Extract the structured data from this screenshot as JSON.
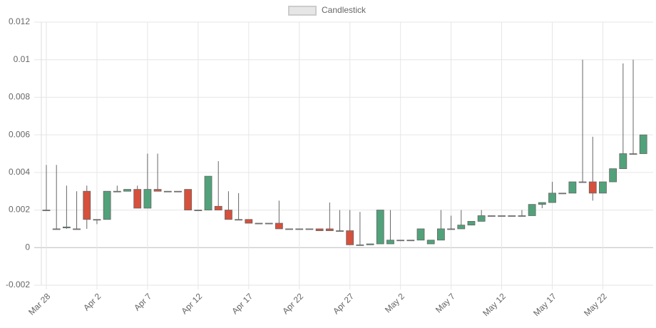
{
  "chart_data": {
    "type": "candlestick",
    "legend": "Candlestick",
    "categories": [
      "Mar 28",
      null,
      null,
      null,
      null,
      "Apr 2",
      null,
      null,
      null,
      null,
      "Apr 7",
      null,
      null,
      null,
      null,
      "Apr 12",
      null,
      null,
      null,
      null,
      "Apr 17",
      null,
      null,
      null,
      null,
      "Apr 22",
      null,
      null,
      null,
      null,
      "Apr 27",
      null,
      null,
      null,
      null,
      "May 2",
      null,
      null,
      null,
      null,
      "May 7",
      null,
      null,
      null,
      null,
      "May 12",
      null,
      null,
      null,
      null,
      "May 17",
      null,
      null,
      null,
      null,
      "May 22",
      null,
      null,
      null,
      null
    ],
    "open": [
      0.002,
      0.001,
      0.00105,
      0.001,
      0.003,
      0.0015,
      0.0015,
      0.003,
      0.003,
      0.0031,
      0.0021,
      0.0031,
      0.003,
      0.003,
      0.0031,
      0.002,
      0.002,
      0.0022,
      0.002,
      0.0015,
      0.0015,
      0.0013,
      0.0013,
      0.0013,
      0.001,
      0.001,
      0.001,
      0.001,
      0.001,
      0.0009,
      0.0009,
      0.00015,
      0.00015,
      0.0002,
      0.0002,
      0.0004,
      0.0004,
      0.0004,
      0.0002,
      0.0004,
      0.001,
      0.001,
      0.0012,
      0.0014,
      0.0017,
      0.0017,
      0.0017,
      0.0017,
      0.0017,
      0.0023,
      0.0024,
      0.0029,
      0.0029,
      0.0035,
      0.0035,
      0.0029,
      0.0035,
      0.0042,
      0.005,
      0.005
    ],
    "high": [
      0.0044,
      0.0044,
      0.0033,
      0.003,
      0.0033,
      0.0015,
      0.003,
      0.0033,
      0.0031,
      0.0033,
      0.005,
      0.005,
      0.003,
      0.003,
      0.0031,
      0.002,
      0.0038,
      0.0046,
      0.003,
      0.0029,
      0.0015,
      0.0013,
      0.0013,
      0.0025,
      0.001,
      0.001,
      0.001,
      0.001,
      0.0024,
      0.002,
      0.002,
      0.0019,
      0.0002,
      0.002,
      0.002,
      0.0004,
      0.0004,
      0.001,
      0.0004,
      0.002,
      0.0017,
      0.002,
      0.0014,
      0.002,
      0.0017,
      0.0017,
      0.0017,
      0.002,
      0.0023,
      0.0024,
      0.0035,
      0.0029,
      0.0035,
      0.01,
      0.0059,
      0.0035,
      0.0042,
      0.0098,
      0.01,
      0.006
    ],
    "low": [
      0.002,
      0.001,
      0.001,
      0.001,
      0.001,
      0.00125,
      0.0015,
      0.003,
      0.003,
      0.0021,
      0.0021,
      0.003,
      0.003,
      0.003,
      0.002,
      0.002,
      0.002,
      0.002,
      0.0015,
      0.0015,
      0.0013,
      0.0013,
      0.0013,
      0.001,
      0.001,
      0.001,
      0.001,
      0.0009,
      0.0009,
      0.0009,
      0.00015,
      0.00015,
      0.00015,
      0.0002,
      0.0002,
      0.0004,
      0.0004,
      0.0004,
      0.0002,
      0.0004,
      0.001,
      0.001,
      0.0012,
      0.0014,
      0.0017,
      0.0017,
      0.0017,
      0.0017,
      0.0017,
      0.0021,
      0.0024,
      0.0029,
      0.0029,
      0.0035,
      0.0025,
      0.0029,
      0.0035,
      0.0042,
      0.005,
      0.005
    ],
    "close": [
      0.002,
      0.001,
      0.0011,
      0.001,
      0.0015,
      0.0015,
      0.003,
      0.003,
      0.0031,
      0.0021,
      0.0031,
      0.003,
      0.003,
      0.003,
      0.002,
      0.002,
      0.0038,
      0.002,
      0.0015,
      0.0015,
      0.0013,
      0.0013,
      0.0013,
      0.001,
      0.001,
      0.001,
      0.001,
      0.0009,
      0.0009,
      0.0009,
      0.00015,
      0.00015,
      0.0002,
      0.002,
      0.0004,
      0.0004,
      0.0004,
      0.001,
      0.0004,
      0.001,
      0.001,
      0.0012,
      0.0014,
      0.0017,
      0.0017,
      0.0017,
      0.0017,
      0.0017,
      0.0023,
      0.0024,
      0.0029,
      0.0029,
      0.0035,
      0.0035,
      0.0029,
      0.0035,
      0.0042,
      0.005,
      0.005,
      0.006
    ],
    "colors": {
      "up": "#51a27a",
      "down": "#d6503c",
      "unchanged": "#999999"
    },
    "ylim": [
      -0.002,
      0.012
    ],
    "yticks": [
      -0.002,
      0,
      0.002,
      0.004,
      0.006,
      0.008,
      0.01,
      0.012
    ],
    "grid": true,
    "legend_position": "top"
  }
}
